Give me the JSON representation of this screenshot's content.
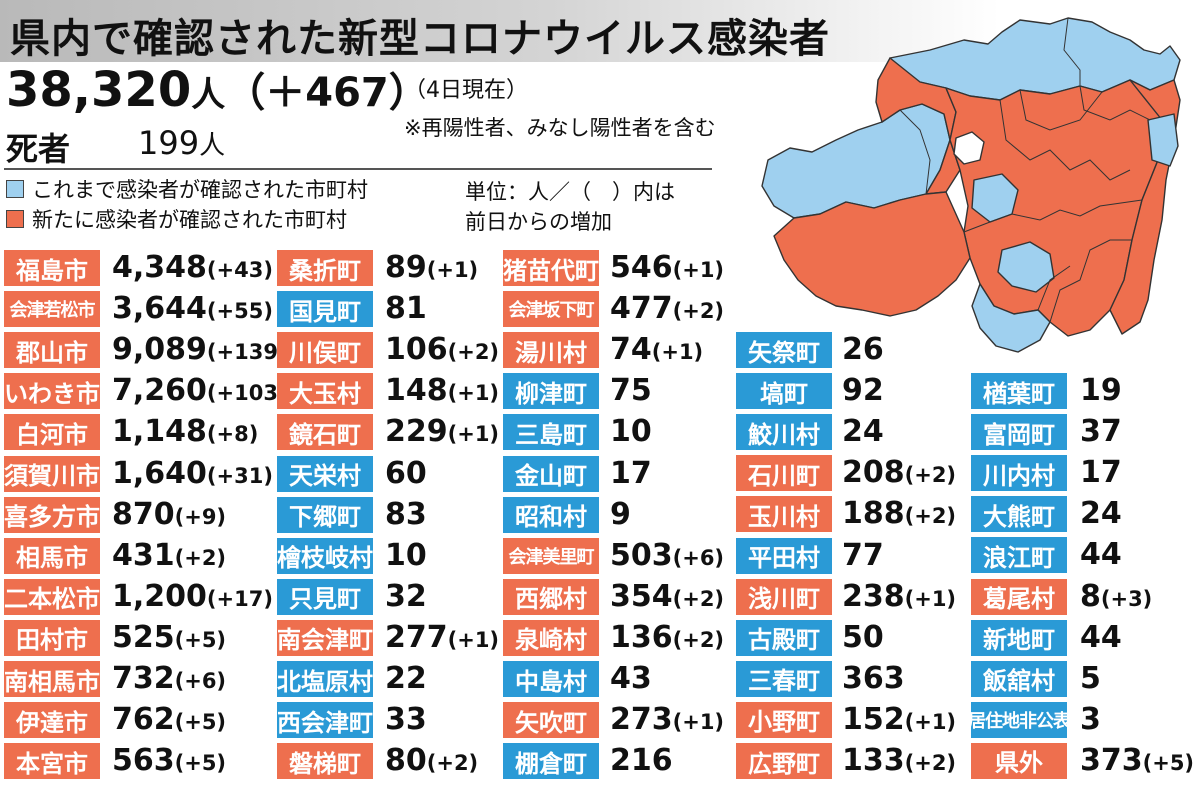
{
  "header": {
    "title": "県内で確認された新型コロナウイルス感染者"
  },
  "total": {
    "count": "38,320",
    "unit": "人",
    "increase": "（＋467）"
  },
  "as_of": "（4日現在）",
  "note": "※再陽性者、みなし陽性者を含む",
  "deaths": {
    "label": "死者",
    "count": "199",
    "unit": "人"
  },
  "legend": {
    "blue_label": "これまで感染者が確認された市町村",
    "red_label": "新たに感染者が確認された市町村",
    "unit_line1": "単位：人／（　）内は",
    "unit_line2": "前日からの増加"
  },
  "colors": {
    "new_case_red": "#ee6f4e",
    "confirmed_blue": "#2a9ad6",
    "map_blue": "#9fd0ef",
    "map_red": "#ee6f4e"
  },
  "columns": [
    [
      {
        "name": "福島市",
        "count": "4,348",
        "delta": "(+43)",
        "color": "red"
      },
      {
        "name": "会津若松市",
        "count": "3,644",
        "delta": "(+55)",
        "color": "red"
      },
      {
        "name": "郡山市",
        "count": "9,089",
        "delta": "(+139)",
        "color": "red"
      },
      {
        "name": "いわき市",
        "count": "7,260",
        "delta": "(+103)",
        "color": "red"
      },
      {
        "name": "白河市",
        "count": "1,148",
        "delta": "(+8)",
        "color": "red"
      },
      {
        "name": "須賀川市",
        "count": "1,640",
        "delta": "(+31)",
        "color": "red"
      },
      {
        "name": "喜多方市",
        "count": "870",
        "delta": "(+9)",
        "color": "red"
      },
      {
        "name": "相馬市",
        "count": "431",
        "delta": "(+2)",
        "color": "red"
      },
      {
        "name": "二本松市",
        "count": "1,200",
        "delta": "(+17)",
        "color": "red"
      },
      {
        "name": "田村市",
        "count": "525",
        "delta": "(+5)",
        "color": "red"
      },
      {
        "name": "南相馬市",
        "count": "732",
        "delta": "(+6)",
        "color": "red"
      },
      {
        "name": "伊達市",
        "count": "762",
        "delta": "(+5)",
        "color": "red"
      },
      {
        "name": "本宮市",
        "count": "563",
        "delta": "(+5)",
        "color": "red"
      }
    ],
    [
      {
        "name": "桑折町",
        "count": "89",
        "delta": "(+1)",
        "color": "red"
      },
      {
        "name": "国見町",
        "count": "81",
        "delta": "",
        "color": "blue"
      },
      {
        "name": "川俣町",
        "count": "106",
        "delta": "(+2)",
        "color": "red"
      },
      {
        "name": "大玉村",
        "count": "148",
        "delta": "(+1)",
        "color": "red"
      },
      {
        "name": "鏡石町",
        "count": "229",
        "delta": "(+1)",
        "color": "red"
      },
      {
        "name": "天栄村",
        "count": "60",
        "delta": "",
        "color": "blue"
      },
      {
        "name": "下郷町",
        "count": "83",
        "delta": "",
        "color": "blue"
      },
      {
        "name": "檜枝岐村",
        "count": "10",
        "delta": "",
        "color": "blue"
      },
      {
        "name": "只見町",
        "count": "32",
        "delta": "",
        "color": "blue"
      },
      {
        "name": "南会津町",
        "count": "277",
        "delta": "(+1)",
        "color": "red"
      },
      {
        "name": "北塩原村",
        "count": "22",
        "delta": "",
        "color": "blue"
      },
      {
        "name": "西会津町",
        "count": "33",
        "delta": "",
        "color": "blue"
      },
      {
        "name": "磐梯町",
        "count": "80",
        "delta": "(+2)",
        "color": "red"
      }
    ],
    [
      {
        "name": "猪苗代町",
        "count": "546",
        "delta": "(+1)",
        "color": "red"
      },
      {
        "name": "会津坂下町",
        "count": "477",
        "delta": "(+2)",
        "color": "red"
      },
      {
        "name": "湯川村",
        "count": "74",
        "delta": "(+1)",
        "color": "red"
      },
      {
        "name": "柳津町",
        "count": "75",
        "delta": "",
        "color": "blue"
      },
      {
        "name": "三島町",
        "count": "10",
        "delta": "",
        "color": "blue"
      },
      {
        "name": "金山町",
        "count": "17",
        "delta": "",
        "color": "blue"
      },
      {
        "name": "昭和村",
        "count": "9",
        "delta": "",
        "color": "blue"
      },
      {
        "name": "会津美里町",
        "count": "503",
        "delta": "(+6)",
        "color": "red"
      },
      {
        "name": "西郷村",
        "count": "354",
        "delta": "(+2)",
        "color": "red"
      },
      {
        "name": "泉崎村",
        "count": "136",
        "delta": "(+2)",
        "color": "red"
      },
      {
        "name": "中島村",
        "count": "43",
        "delta": "",
        "color": "blue"
      },
      {
        "name": "矢吹町",
        "count": "273",
        "delta": "(+1)",
        "color": "red"
      },
      {
        "name": "棚倉町",
        "count": "216",
        "delta": "",
        "color": "blue"
      }
    ],
    [
      {
        "name": "矢祭町",
        "count": "26",
        "delta": "",
        "color": "blue"
      },
      {
        "name": "塙町",
        "count": "92",
        "delta": "",
        "color": "blue"
      },
      {
        "name": "鮫川村",
        "count": "24",
        "delta": "",
        "color": "blue"
      },
      {
        "name": "石川町",
        "count": "208",
        "delta": "(+2)",
        "color": "red"
      },
      {
        "name": "玉川村",
        "count": "188",
        "delta": "(+2)",
        "color": "red"
      },
      {
        "name": "平田村",
        "count": "77",
        "delta": "",
        "color": "blue"
      },
      {
        "name": "浅川町",
        "count": "238",
        "delta": "(+1)",
        "color": "red"
      },
      {
        "name": "古殿町",
        "count": "50",
        "delta": "",
        "color": "blue"
      },
      {
        "name": "三春町",
        "count": "363",
        "delta": "",
        "color": "blue"
      },
      {
        "name": "小野町",
        "count": "152",
        "delta": "(+1)",
        "color": "red"
      },
      {
        "name": "広野町",
        "count": "133",
        "delta": "(+2)",
        "color": "red"
      }
    ],
    [
      {
        "name": "楢葉町",
        "count": "19",
        "delta": "",
        "color": "blue"
      },
      {
        "name": "富岡町",
        "count": "37",
        "delta": "",
        "color": "blue"
      },
      {
        "name": "川内村",
        "count": "17",
        "delta": "",
        "color": "blue"
      },
      {
        "name": "大熊町",
        "count": "24",
        "delta": "",
        "color": "blue"
      },
      {
        "name": "浪江町",
        "count": "44",
        "delta": "",
        "color": "blue"
      },
      {
        "name": "葛尾村",
        "count": "8",
        "delta": "(+3)",
        "color": "red"
      },
      {
        "name": "新地町",
        "count": "44",
        "delta": "",
        "color": "blue"
      },
      {
        "name": "飯舘村",
        "count": "5",
        "delta": "",
        "color": "blue"
      },
      {
        "name": "居住地非公表",
        "count": "3",
        "delta": "",
        "color": "blue"
      },
      {
        "name": "県外",
        "count": "373",
        "delta": "(+5)",
        "color": "red"
      }
    ]
  ]
}
